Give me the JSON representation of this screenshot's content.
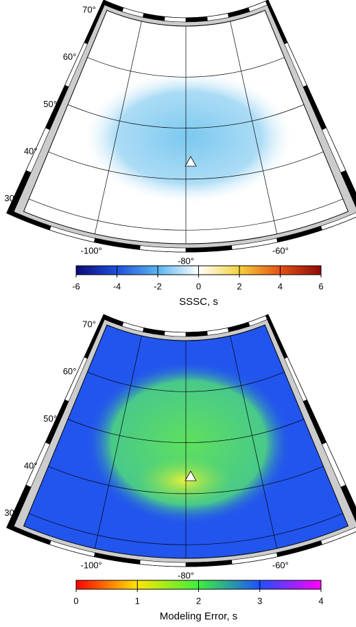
{
  "panels": [
    {
      "lat_labels": [
        "70°",
        "60°",
        "50°",
        "40°",
        "30°"
      ],
      "lon_labels": [
        "-100°",
        "-80°",
        "-60°"
      ],
      "colorbar": {
        "label": "SSSC, s",
        "range": [
          -6,
          6
        ],
        "ticks": [
          -6,
          -4,
          -2,
          0,
          2,
          4,
          6
        ],
        "colors": [
          "#0a0a78",
          "#1e50dc",
          "#5ab4f0",
          "#ffffff",
          "#f5d23c",
          "#e65014",
          "#8c0a0a"
        ]
      }
    },
    {
      "lat_labels": [
        "70°",
        "60°",
        "50°",
        "40°",
        "30°"
      ],
      "lon_labels": [
        "-100°",
        "-80°",
        "-60°"
      ],
      "colorbar": {
        "label": "Modeling Error, s",
        "range": [
          0,
          4
        ],
        "ticks": [
          0,
          1,
          2,
          3,
          4
        ],
        "colors": [
          "#ff0000",
          "#ffe600",
          "#3cf03c",
          "#1e50ff",
          "#ff00ff"
        ]
      }
    }
  ]
}
